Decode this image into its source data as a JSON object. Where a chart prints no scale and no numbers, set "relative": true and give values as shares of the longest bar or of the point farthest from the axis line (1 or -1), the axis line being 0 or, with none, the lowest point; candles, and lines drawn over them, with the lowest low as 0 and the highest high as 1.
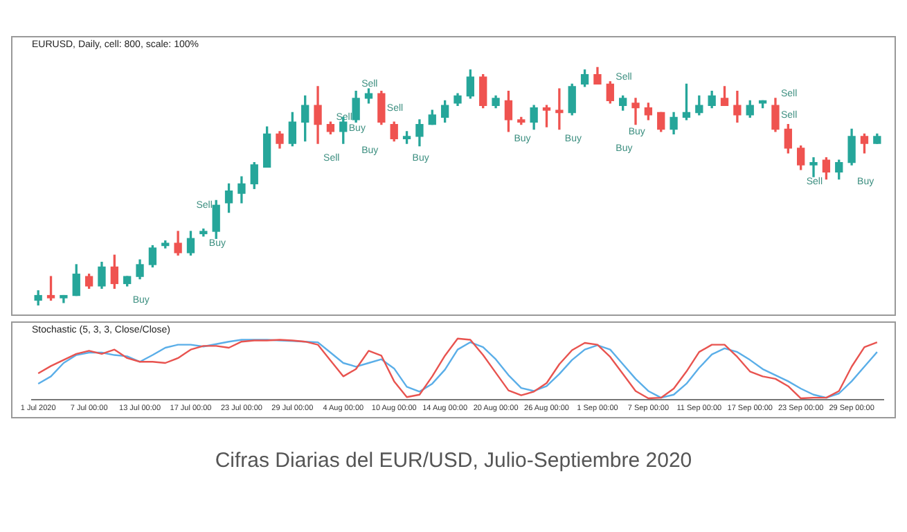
{
  "chart_data": [
    {
      "type": "candlestick",
      "title": "EURUSD, Daily, cell: 800, scale: 100%",
      "relative": true,
      "tick_labels": false,
      "categories": [
        null,
        null,
        null,
        null,
        null,
        null,
        null,
        null,
        null,
        null,
        null,
        null,
        null,
        null,
        null,
        null,
        null,
        null,
        null,
        null,
        null,
        null,
        null,
        null,
        null,
        null,
        null,
        null,
        null,
        null,
        null,
        null,
        null,
        null,
        null,
        null,
        null,
        null,
        null,
        null,
        null,
        null,
        null,
        null,
        null,
        null,
        null,
        null,
        null,
        null,
        null,
        null,
        null,
        null,
        null,
        null,
        null,
        null,
        null,
        null,
        null,
        null,
        null,
        null,
        null,
        null,
        null
      ],
      "ohlc": [
        [
          0.02,
          0.06,
          0,
          0.04
        ],
        [
          0.04,
          0.12,
          0.02,
          0.03
        ],
        [
          0.03,
          0.04,
          0.01,
          0.04
        ],
        [
          0.04,
          0.17,
          0.04,
          0.13
        ],
        [
          0.12,
          0.13,
          0.07,
          0.08
        ],
        [
          0.08,
          0.18,
          0.07,
          0.16
        ],
        [
          0.16,
          0.21,
          0.07,
          0.09
        ],
        [
          0.09,
          0.12,
          0.08,
          0.12
        ],
        [
          0.12,
          0.19,
          0.11,
          0.17
        ],
        [
          0.17,
          0.25,
          0.16,
          0.24
        ],
        [
          0.25,
          0.27,
          0.24,
          0.26
        ],
        [
          0.26,
          0.31,
          0.21,
          0.22
        ],
        [
          0.22,
          0.31,
          0.21,
          0.28
        ],
        [
          0.3,
          0.32,
          0.29,
          0.31
        ],
        [
          0.31,
          0.44,
          0.28,
          0.42
        ],
        [
          0.43,
          0.51,
          0.39,
          0.48
        ],
        [
          0.47,
          0.54,
          0.43,
          0.51
        ],
        [
          0.51,
          0.6,
          0.49,
          0.59
        ],
        [
          0.58,
          0.75,
          0.58,
          0.72
        ],
        [
          0.72,
          0.73,
          0.66,
          0.68
        ],
        [
          0.68,
          0.81,
          0.67,
          0.77
        ],
        [
          0.77,
          0.88,
          0.69,
          0.84
        ],
        [
          0.84,
          0.92,
          0.68,
          0.76
        ],
        [
          0.76,
          0.77,
          0.72,
          0.73
        ],
        [
          0.73,
          0.79,
          0.68,
          0.77
        ],
        [
          0.78,
          0.9,
          0.77,
          0.87
        ],
        [
          0.87,
          0.91,
          0.85,
          0.89
        ],
        [
          0.89,
          0.9,
          0.76,
          0.77
        ],
        [
          0.76,
          0.77,
          0.69,
          0.7
        ],
        [
          0.7,
          0.73,
          0.68,
          0.71
        ],
        [
          0.71,
          0.78,
          0.67,
          0.76
        ],
        [
          0.76,
          0.82,
          0.76,
          0.8
        ],
        [
          0.79,
          0.86,
          0.77,
          0.84
        ],
        [
          0.85,
          0.89,
          0.84,
          0.88
        ],
        [
          0.88,
          0.99,
          0.87,
          0.96
        ],
        [
          0.96,
          0.97,
          0.83,
          0.84
        ],
        [
          0.84,
          0.88,
          0.83,
          0.87
        ],
        [
          0.86,
          0.9,
          0.73,
          0.78
        ],
        [
          0.78,
          0.79,
          0.76,
          0.77
        ],
        [
          0.77,
          0.84,
          0.74,
          0.83
        ],
        [
          0.83,
          0.84,
          0.75,
          0.82
        ],
        [
          0.82,
          0.91,
          0.74,
          0.81
        ],
        [
          0.81,
          0.93,
          0.8,
          0.92
        ],
        [
          0.93,
          0.99,
          0.92,
          0.97
        ],
        [
          0.97,
          1,
          0.93,
          0.93
        ],
        [
          0.93,
          0.94,
          0.85,
          0.86
        ],
        [
          0.84,
          0.88,
          0.82,
          0.87
        ],
        [
          0.85,
          0.87,
          0.76,
          0.83
        ],
        [
          0.83,
          0.85,
          0.78,
          0.8
        ],
        [
          0.81,
          0.81,
          0.73,
          0.74
        ],
        [
          0.74,
          0.81,
          0.72,
          0.79
        ],
        [
          0.79,
          0.93,
          0.78,
          0.81
        ],
        [
          0.81,
          0.88,
          0.8,
          0.84
        ],
        [
          0.84,
          0.9,
          0.83,
          0.88
        ],
        [
          0.87,
          0.92,
          0.84,
          0.84
        ],
        [
          0.84,
          0.9,
          0.77,
          0.8
        ],
        [
          0.8,
          0.86,
          0.79,
          0.84
        ],
        [
          0.85,
          0.86,
          0.83,
          0.86
        ],
        [
          0.84,
          0.87,
          0.73,
          0.74
        ],
        [
          0.74,
          0.76,
          0.64,
          0.66
        ],
        [
          0.66,
          0.67,
          0.57,
          0.59
        ],
        [
          0.59,
          0.62,
          0.54,
          0.6
        ],
        [
          0.61,
          0.62,
          0.53,
          0.56
        ],
        [
          0.56,
          0.61,
          0.53,
          0.6
        ],
        [
          0.6,
          0.74,
          0.59,
          0.71
        ],
        [
          0.71,
          0.72,
          0.64,
          0.68
        ],
        [
          0.68,
          0.72,
          0.68,
          0.71
        ]
      ],
      "colors": [
        "#26a69a",
        "#ef5350",
        "#26a69a",
        "#26a69a",
        "#ef5350",
        "#26a69a",
        "#ef5350",
        "#26a69a",
        "#26a69a",
        "#26a69a",
        "#26a69a",
        "#ef5350",
        "#26a69a",
        "#26a69a",
        "#26a69a",
        "#26a69a",
        "#26a69a",
        "#26a69a",
        "#26a69a",
        "#ef5350",
        "#26a69a",
        "#26a69a",
        "#ef5350",
        "#ef5350",
        "#26a69a",
        "#26a69a",
        "#26a69a",
        "#ef5350",
        "#ef5350",
        "#26a69a",
        "#26a69a",
        "#26a69a",
        "#26a69a",
        "#26a69a",
        "#26a69a",
        "#ef5350",
        "#26a69a",
        "#ef5350",
        "#ef5350",
        "#26a69a",
        "#ef5350",
        "#ef5350",
        "#26a69a",
        "#26a69a",
        "#ef5350",
        "#ef5350",
        "#26a69a",
        "#ef5350",
        "#ef5350",
        "#ef5350",
        "#26a69a",
        "#26a69a",
        "#26a69a",
        "#26a69a",
        "#ef5350",
        "#ef5350",
        "#26a69a",
        "#26a69a",
        "#ef5350",
        "#ef5350",
        "#ef5350",
        "#26a69a",
        "#ef5350",
        "#26a69a",
        "#26a69a",
        "#ef5350",
        "#26a69a"
      ],
      "annotations": [
        "Buy",
        "Buy",
        "Sell",
        "Sell",
        "Sell",
        "Buy",
        "Sell",
        "Buy",
        "Sell",
        "Buy",
        "Buy",
        "Buy",
        "Sell",
        "Buy",
        "Buy",
        "Sell",
        "Sell",
        "Sell",
        "Buy"
      ]
    },
    {
      "type": "line",
      "title": "Stochastic (5, 3, 3, Close/Close)",
      "relative": true,
      "tick_labels": "x",
      "marker": "none",
      "categories": [
        "1 Jul 2020",
        null,
        null,
        null,
        "7 Jul 00:00",
        null,
        null,
        null,
        "13 Jul 00:00",
        null,
        null,
        null,
        "17 Jul 00:00",
        null,
        null,
        null,
        "23 Jul 00:00",
        null,
        null,
        null,
        "29 Jul 00:00",
        null,
        null,
        null,
        "4 Aug 00:00",
        null,
        null,
        null,
        "10 Aug 00:00",
        null,
        null,
        null,
        "14 Aug 00:00",
        null,
        null,
        null,
        "20 Aug 00:00",
        null,
        null,
        null,
        "26 Aug 00:00",
        null,
        null,
        null,
        "1 Sep 00:00",
        null,
        null,
        null,
        "7 Sep 00:00",
        null,
        null,
        null,
        "11 Sep 00:00",
        null,
        null,
        null,
        "17 Sep 00:00",
        null,
        null,
        null,
        "23 Sep 00:00",
        null,
        null,
        null,
        "29 Sep 00:00",
        null,
        null
      ],
      "series": [
        {
          "color": "#e8534f",
          "values": [
            0.43,
            0.55,
            0.65,
            0.75,
            0.8,
            0.75,
            0.82,
            0.68,
            0.62,
            0.62,
            0.6,
            0.68,
            0.82,
            0.88,
            0.88,
            0.85,
            0.95,
            0.97,
            0.97,
            0.98,
            0.97,
            0.95,
            0.9,
            0.64,
            0.38,
            0.5,
            0.8,
            0.72,
            0.3,
            0.04,
            0.08,
            0.38,
            0.72,
            1,
            0.98,
            0.73,
            0.44,
            0.15,
            0.07,
            0.13,
            0.27,
            0.58,
            0.81,
            0.93,
            0.9,
            0.7,
            0.42,
            0.14,
            0.02,
            0.03,
            0.18,
            0.46,
            0.78,
            0.9,
            0.9,
            0.7,
            0.46,
            0.38,
            0.34,
            0.22,
            0.02,
            0.03,
            0.03,
            0.14,
            0.54,
            0.86,
            0.94
          ]
        },
        {
          "color": "#5aaee8",
          "values": [
            0.26,
            0.38,
            0.6,
            0.73,
            0.77,
            0.77,
            0.73,
            0.71,
            0.62,
            0.73,
            0.85,
            0.9,
            0.9,
            0.87,
            0.91,
            0.95,
            0.98,
            0.98,
            0.98,
            0.97,
            0.96,
            0.95,
            0.94,
            0.77,
            0.6,
            0.54,
            0.6,
            0.66,
            0.51,
            0.21,
            0.13,
            0.26,
            0.49,
            0.82,
            0.94,
            0.86,
            0.66,
            0.4,
            0.19,
            0.14,
            0.22,
            0.42,
            0.65,
            0.82,
            0.89,
            0.82,
            0.58,
            0.34,
            0.14,
            0.03,
            0.08,
            0.26,
            0.52,
            0.74,
            0.84,
            0.78,
            0.65,
            0.5,
            0.4,
            0.3,
            0.18,
            0.08,
            0.03,
            0.1,
            0.3,
            0.54,
            0.78
          ]
        }
      ],
      "annotations": [
        "Cifras Diarias del EUR/USD, Julio-Septiembre 2020"
      ]
    }
  ]
}
